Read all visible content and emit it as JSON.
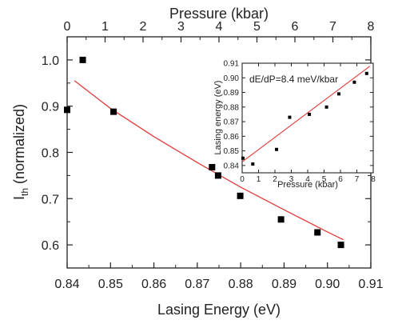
{
  "colors": {
    "axis": "#222222",
    "points": "#000000",
    "fit": "#e03a3a",
    "point_edge": "#cc2222"
  },
  "chart_data": [
    {
      "type": "scatter",
      "x_bottom_label": "Lasing Energy (eV)",
      "x_top_label": "Pressure (kbar)",
      "y_label_main": "I",
      "y_label_sub": "th",
      "y_label_suffix": " (normalized)",
      "x_bottom_range": [
        0.84,
        0.91
      ],
      "x_bottom_ticks": [
        "0.84",
        "0.85",
        "0.86",
        "0.87",
        "0.88",
        "0.89",
        "0.90",
        "0.91"
      ],
      "x_top_range": [
        0,
        8
      ],
      "x_top_ticks": [
        "0",
        "1",
        "2",
        "3",
        "4",
        "5",
        "6",
        "7",
        "8"
      ],
      "y_range": [
        0.55,
        1.05
      ],
      "y_ticks": [
        "0.6",
        "0.7",
        "0.8",
        "0.9",
        "1.0"
      ],
      "series": [
        {
          "x": [
            0.84,
            0.8436,
            0.8507,
            0.8734,
            0.8748,
            0.8799,
            0.8893,
            0.8977,
            0.9031
          ],
          "y": [
            0.892,
            1.0,
            0.888,
            0.768,
            0.75,
            0.706,
            0.655,
            0.627,
            0.6
          ]
        }
      ],
      "fit": {
        "x": [
          0.8417,
          0.85,
          0.86,
          0.87,
          0.88,
          0.89,
          0.9,
          0.9037
        ],
        "y": [
          0.955,
          0.895,
          0.834,
          0.778,
          0.725,
          0.676,
          0.628,
          0.611
        ]
      }
    },
    {
      "type": "scatter",
      "xlabel": "Pressure (kbar)",
      "ylabel": "Lasing energy (eV)",
      "annotation": "dE/dP=8.4 meV/kbar",
      "xlim": [
        0,
        8
      ],
      "x_ticks": [
        "0",
        "1",
        "2",
        "3",
        "4",
        "5",
        "6",
        "7",
        "8"
      ],
      "ylim": [
        0.835,
        0.91
      ],
      "y_ticks": [
        "0.84",
        "0.85",
        "0.86",
        "0.87",
        "0.88",
        "0.89",
        "0.90",
        "0.91"
      ],
      "series": [
        {
          "x": [
            0.05,
            0.65,
            2.1,
            2.9,
            4.1,
            5.15,
            5.9,
            6.85,
            7.6
          ],
          "y": [
            0.845,
            0.841,
            0.851,
            0.873,
            0.875,
            0.88,
            0.889,
            0.897,
            0.903
          ]
        }
      ],
      "fit": {
        "x": [
          0,
          7.8
        ],
        "y": [
          0.8425,
          0.908
        ]
      }
    }
  ]
}
